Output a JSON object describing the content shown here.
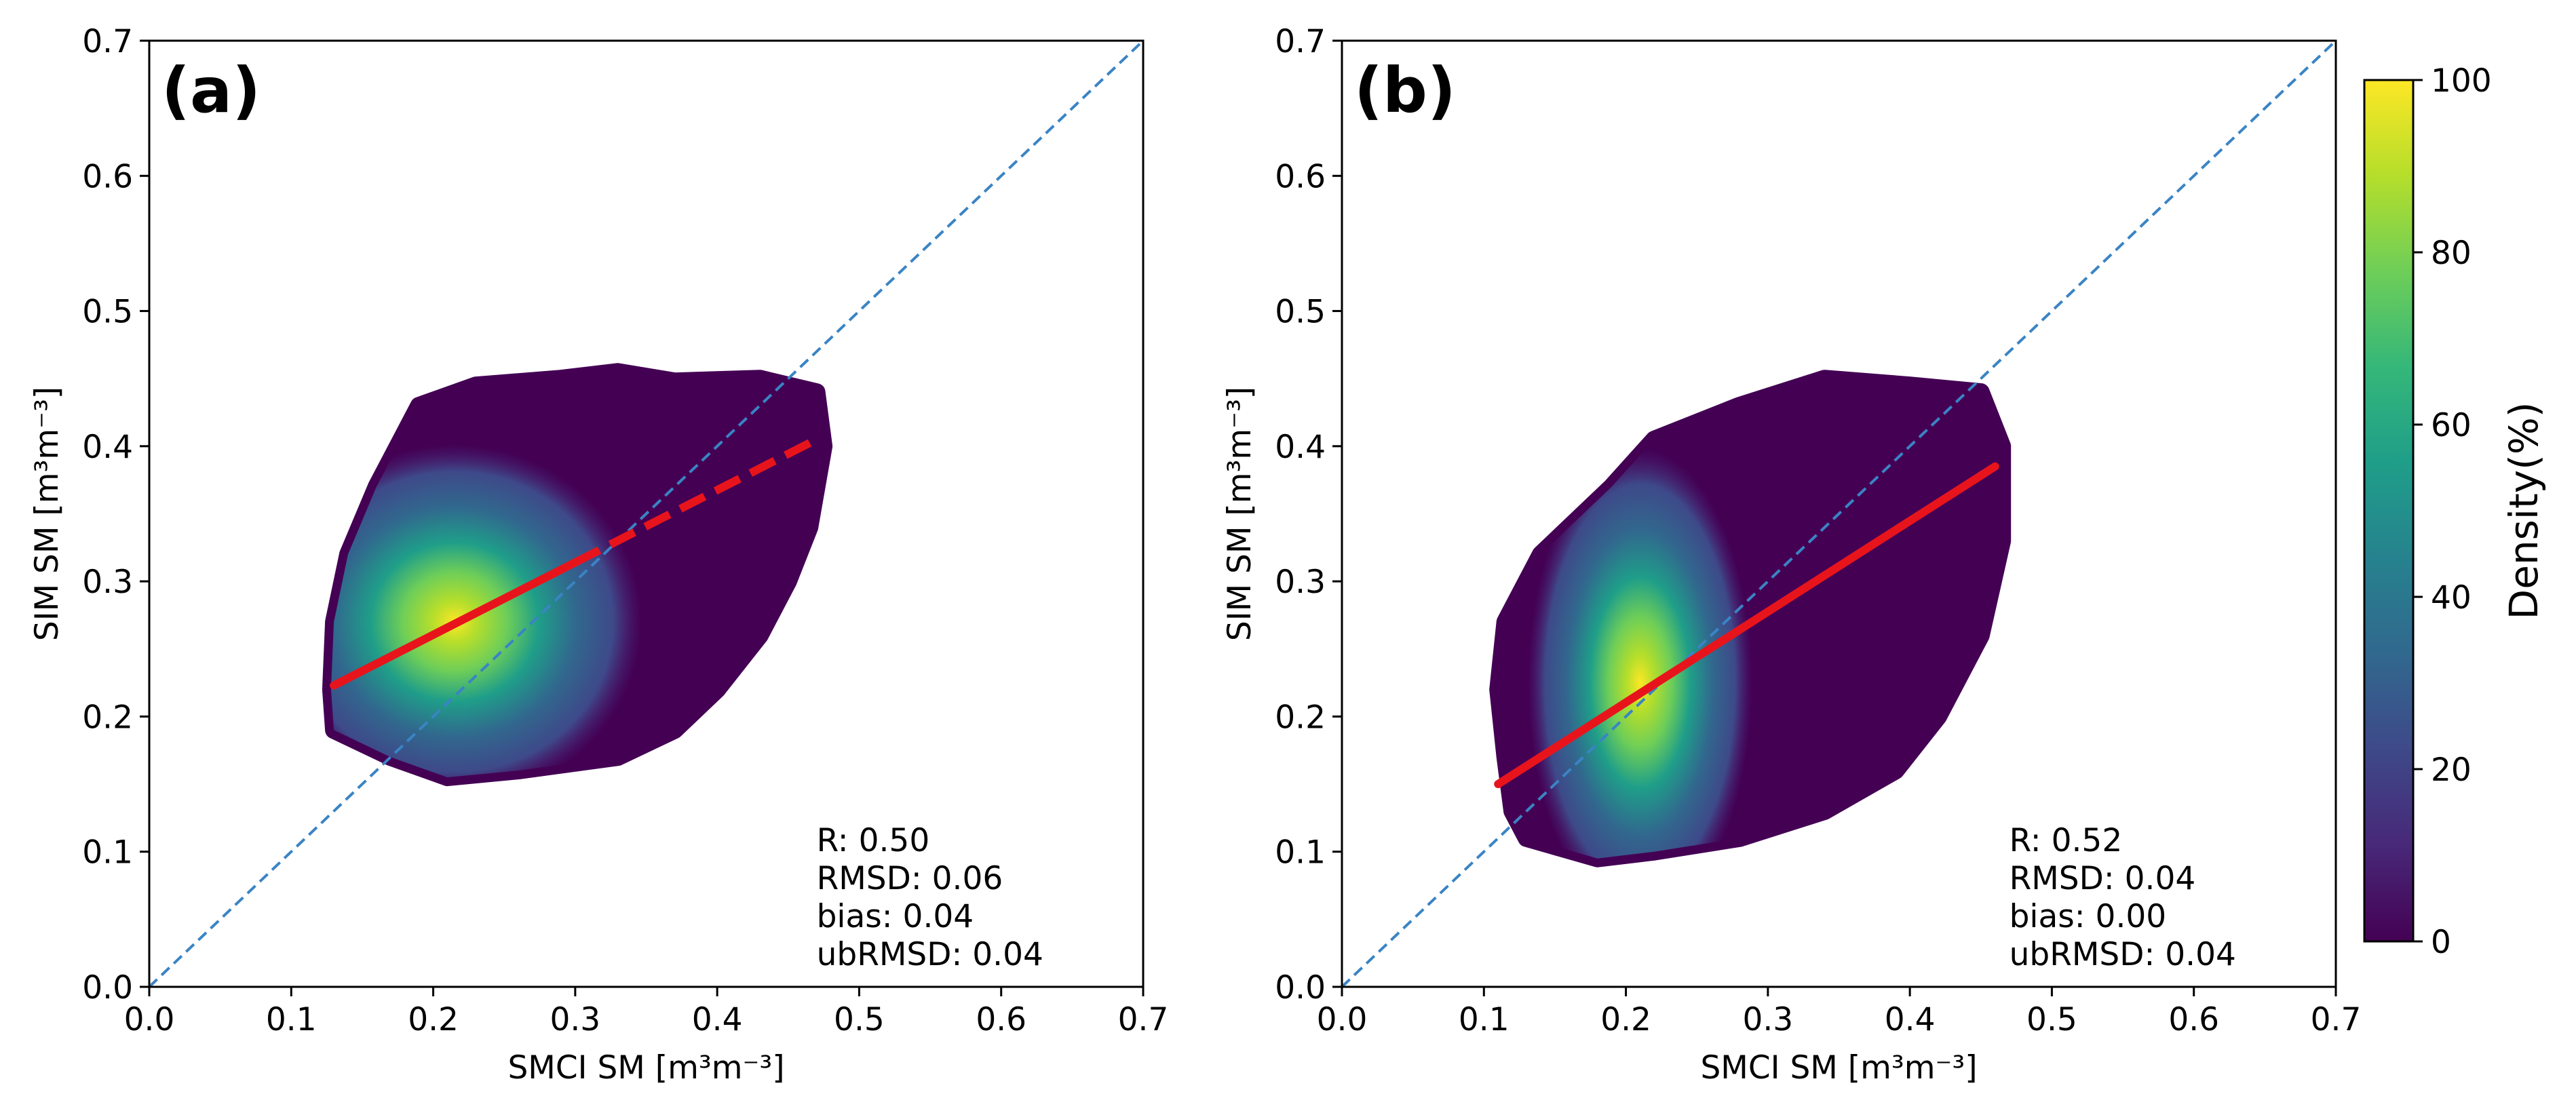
{
  "chart_data": [
    {
      "type": "scatter",
      "panel_label": "(a)",
      "xlabel": "SMCI SM [m³m⁻³]",
      "ylabel": "SIM SM [m³m⁻³]",
      "xlim": [
        0.0,
        0.7
      ],
      "ylim": [
        0.0,
        0.7
      ],
      "x_ticks": [
        "0.0",
        "0.1",
        "0.2",
        "0.3",
        "0.4",
        "0.5",
        "0.6",
        "0.7"
      ],
      "y_ticks": [
        "0.0",
        "0.1",
        "0.2",
        "0.3",
        "0.4",
        "0.5",
        "0.6",
        "0.7"
      ],
      "identity_line": {
        "x": [
          0.0,
          0.7
        ],
        "y": [
          0.0,
          0.7
        ],
        "style": "dashed",
        "color": "#3a84c4"
      },
      "fit_line": {
        "x": [
          0.13,
          0.47
        ],
        "y": [
          0.223,
          0.405
        ],
        "solid_until_x": 0.3,
        "color": "#e8141c"
      },
      "point_cloud": {
        "outline": [
          [
            0.13,
            0.19
          ],
          [
            0.17,
            0.17
          ],
          [
            0.21,
            0.155
          ],
          [
            0.26,
            0.16
          ],
          [
            0.33,
            0.17
          ],
          [
            0.37,
            0.19
          ],
          [
            0.4,
            0.22
          ],
          [
            0.43,
            0.26
          ],
          [
            0.45,
            0.3
          ],
          [
            0.465,
            0.34
          ],
          [
            0.475,
            0.4
          ],
          [
            0.47,
            0.44
          ],
          [
            0.43,
            0.45
          ],
          [
            0.37,
            0.448
          ],
          [
            0.33,
            0.455
          ],
          [
            0.29,
            0.45
          ],
          [
            0.23,
            0.445
          ],
          [
            0.19,
            0.43
          ],
          [
            0.16,
            0.37
          ],
          [
            0.14,
            0.32
          ],
          [
            0.13,
            0.27
          ],
          [
            0.128,
            0.22
          ]
        ],
        "density_peak": {
          "x": 0.215,
          "y": 0.27,
          "percent": 100
        }
      },
      "stats": {
        "r": "R: 0.50",
        "rmsd": "RMSD: 0.06",
        "bias": "bias: 0.04",
        "ubrmsd": "ubRMSD: 0.04"
      }
    },
    {
      "type": "scatter",
      "panel_label": "(b)",
      "xlabel": "SMCI SM [m³m⁻³]",
      "ylabel": "SIM SM [m³m⁻³]",
      "xlim": [
        0.0,
        0.7
      ],
      "ylim": [
        0.0,
        0.7
      ],
      "x_ticks": [
        "0.0",
        "0.1",
        "0.2",
        "0.3",
        "0.4",
        "0.5",
        "0.6",
        "0.7"
      ],
      "y_ticks": [
        "0.0",
        "0.1",
        "0.2",
        "0.3",
        "0.4",
        "0.5",
        "0.6",
        "0.7"
      ],
      "identity_line": {
        "x": [
          0.0,
          0.7
        ],
        "y": [
          0.0,
          0.7
        ],
        "style": "dashed",
        "color": "#3a84c4"
      },
      "fit_line": {
        "x": [
          0.11,
          0.46
        ],
        "y": [
          0.15,
          0.385
        ],
        "solid_until_x": 0.46,
        "color": "#e8141c"
      },
      "point_cloud": {
        "outline": [
          [
            0.13,
            0.11
          ],
          [
            0.18,
            0.095
          ],
          [
            0.22,
            0.1
          ],
          [
            0.28,
            0.11
          ],
          [
            0.34,
            0.13
          ],
          [
            0.39,
            0.16
          ],
          [
            0.42,
            0.2
          ],
          [
            0.45,
            0.26
          ],
          [
            0.465,
            0.33
          ],
          [
            0.465,
            0.4
          ],
          [
            0.45,
            0.44
          ],
          [
            0.4,
            0.445
          ],
          [
            0.34,
            0.45
          ],
          [
            0.28,
            0.43
          ],
          [
            0.22,
            0.405
          ],
          [
            0.19,
            0.37
          ],
          [
            0.14,
            0.32
          ],
          [
            0.115,
            0.27
          ],
          [
            0.11,
            0.22
          ],
          [
            0.115,
            0.17
          ],
          [
            0.12,
            0.13
          ]
        ],
        "density_peak": {
          "x": 0.21,
          "y": 0.225,
          "percent": 100
        }
      },
      "stats": {
        "r": "R: 0.52",
        "rmsd": "RMSD: 0.04",
        "bias": "bias: 0.00",
        "ubrmsd": "ubRMSD: 0.04"
      }
    }
  ],
  "colorbar": {
    "title": "Density(%)",
    "range": [
      0,
      100
    ],
    "ticks": [
      "0",
      "20",
      "40",
      "60",
      "80",
      "100"
    ],
    "colormap": "viridis",
    "stops": [
      "#440154",
      "#482878",
      "#3e4989",
      "#31688e",
      "#26828e",
      "#1f9e89",
      "#35b779",
      "#6ece58",
      "#b5de2b",
      "#fde725"
    ]
  }
}
